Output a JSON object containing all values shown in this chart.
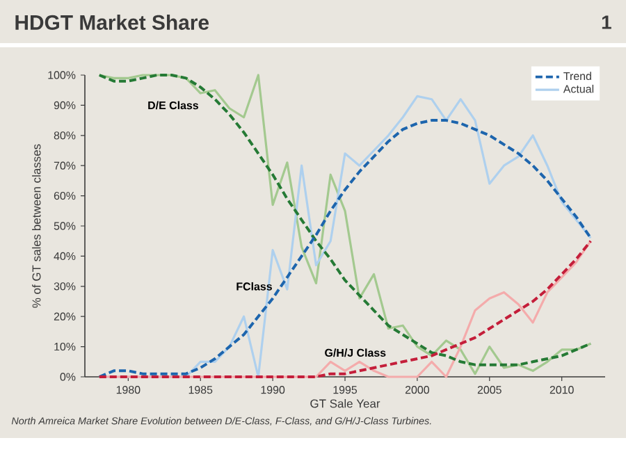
{
  "chart_data": {
    "type": "line",
    "title": "HDGT Market Share",
    "xlabel": "GT Sale Year",
    "ylabel": "% of GT sales between classes",
    "x": [
      1978,
      1979,
      1980,
      1981,
      1982,
      1983,
      1984,
      1985,
      1986,
      1987,
      1988,
      1989,
      1990,
      1991,
      1992,
      1993,
      1994,
      1995,
      1996,
      1997,
      1998,
      1999,
      2000,
      2001,
      2002,
      2003,
      2004,
      2005,
      2006,
      2007,
      2008,
      2009,
      2010,
      2011,
      2012
    ],
    "series": [
      {
        "color": "#a3c98f",
        "line_style": "solid",
        "values": [
          100,
          99,
          99,
          100,
          100,
          100,
          99,
          94,
          95,
          89,
          86,
          100,
          57,
          71,
          43,
          31,
          67,
          55,
          26,
          34,
          16,
          17,
          10,
          7,
          12,
          9,
          1,
          10,
          3,
          4,
          2,
          5,
          9,
          9,
          11
        ]
      },
      {
        "name": "Actual",
        "color": "#aed0ee",
        "line_style": "solid",
        "values": [
          0,
          0,
          0,
          0,
          0,
          0,
          0,
          5,
          5,
          10,
          20,
          0,
          42,
          29,
          70,
          37,
          45,
          74,
          70,
          75,
          80,
          86,
          93,
          92,
          85,
          92,
          85,
          64,
          70,
          73,
          80,
          70,
          58,
          52,
          46
        ]
      },
      {
        "color": "#f4abab",
        "line_style": "solid",
        "values": [
          0,
          0,
          0,
          0,
          0,
          0,
          0,
          0,
          0,
          0,
          0,
          0,
          0,
          0,
          0,
          0,
          5,
          2,
          5,
          2,
          0,
          0,
          0,
          5,
          0,
          10,
          22,
          26,
          28,
          24,
          18,
          28,
          33,
          38,
          45
        ]
      },
      {
        "color": "#257a35",
        "line_style": "dashed",
        "values": [
          100,
          98,
          98,
          99,
          100,
          100,
          99,
          96,
          92,
          87,
          81,
          74,
          67,
          59,
          52,
          45,
          39,
          32,
          27,
          22,
          17,
          14,
          11,
          8,
          7,
          5,
          4,
          4,
          4,
          4,
          5,
          6,
          7,
          9,
          11
        ]
      },
      {
        "name": "Trend",
        "color": "#1d65ad",
        "line_style": "dashed",
        "values": [
          0,
          2,
          2,
          1,
          1,
          1,
          1,
          3,
          6,
          10,
          14,
          20,
          26,
          33,
          40,
          47,
          55,
          62,
          68,
          73,
          78,
          82,
          84,
          85,
          85,
          84,
          82,
          80,
          77,
          74,
          70,
          65,
          59,
          53,
          46
        ]
      },
      {
        "color": "#c41e3a",
        "line_style": "dashed",
        "values": [
          0,
          0,
          0,
          0,
          0,
          0,
          0,
          0,
          0,
          0,
          0,
          0,
          0,
          0,
          0,
          0,
          1,
          1,
          2,
          3,
          4,
          5,
          6,
          7,
          9,
          11,
          13,
          16,
          19,
          22,
          25,
          29,
          34,
          39,
          45
        ]
      }
    ],
    "xlim": [
      1977,
      2013
    ],
    "xticks": [
      1980,
      1985,
      1990,
      1995,
      2000,
      2005,
      2010
    ],
    "ylim": [
      0,
      100
    ],
    "yticks": [
      {
        "value": 0,
        "label": "0%"
      },
      {
        "value": 10,
        "label": "10%"
      },
      {
        "value": 20,
        "label": "20%"
      },
      {
        "value": 30,
        "label": "30%"
      },
      {
        "value": 40,
        "label": "40%"
      },
      {
        "value": 50,
        "label": "50%"
      },
      {
        "value": 60,
        "label": "60%"
      },
      {
        "value": 70,
        "label": "70%"
      },
      {
        "value": 80,
        "label": "80%"
      },
      {
        "value": 90,
        "label": "90%"
      },
      {
        "value": 100,
        "label": "100%"
      }
    ],
    "grid": false,
    "legend": "top right",
    "marker": "none",
    "annotations": [
      "D/E Class",
      "FClass",
      "G/H/J Class",
      "North Amreica Market Share Evolution between D/E-Class, F-Class, and G/H/J-Class Turbines.",
      "1"
    ]
  }
}
